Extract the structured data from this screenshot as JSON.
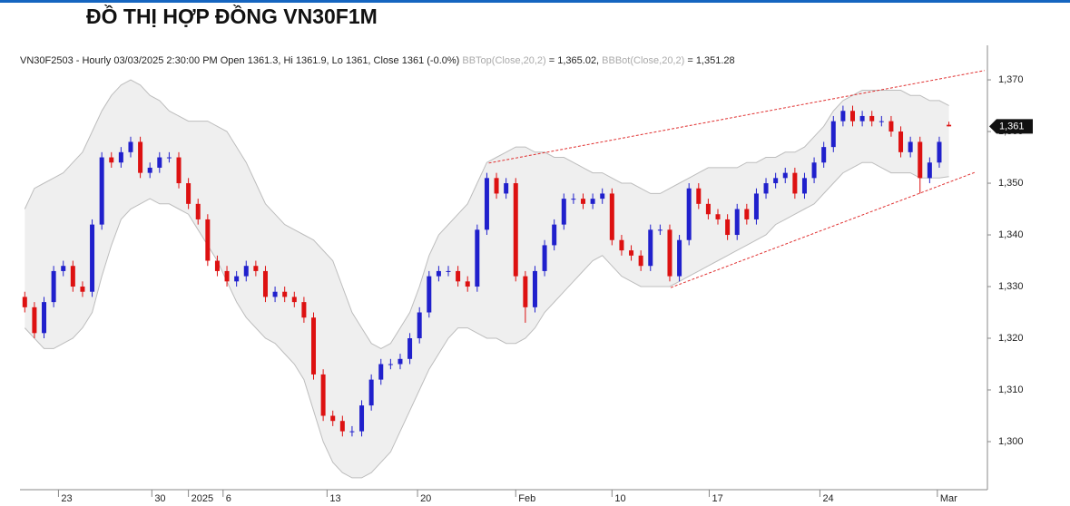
{
  "chart_data": {
    "type": "candlestick",
    "title": "ĐỒ THỊ HỢP ĐỒNG VN30F1M",
    "header": [
      {
        "text": "VN30F2503 - Hourly 03/03/2025 2:30:00 PM Open 1361.3, Hi 1361.9, Lo 1361, Close 1361 (-0.0%) ",
        "color": "#222222"
      },
      {
        "text": "BBTop(Close,20,2)",
        "color": "#aaaaaa"
      },
      {
        "text": " = 1,365.02, ",
        "color": "#222222"
      },
      {
        "text": "BBBot(Close,20,2)",
        "color": "#aaaaaa"
      },
      {
        "text": " = 1,351.28",
        "color": "#222222"
      }
    ],
    "up_color": "#2020cc",
    "down_color": "#dd1111",
    "open": [
      1328,
      1326,
      1321,
      1327,
      1333,
      1334,
      1330,
      1329,
      1342,
      1355,
      1354,
      1356,
      1358,
      1352,
      1353,
      1355,
      1355,
      1350,
      1346,
      1343,
      1335,
      1333,
      1331,
      1332,
      1334,
      1333,
      1328,
      1329,
      1328,
      1327,
      1324,
      1313,
      1305,
      1304,
      1302,
      1302,
      1307,
      1312,
      1315,
      1315,
      1316,
      1320,
      1325,
      1332,
      1333,
      1333,
      1331,
      1330,
      1341,
      1351,
      1348,
      1350,
      1332,
      1326,
      1333,
      1338,
      1342,
      1347,
      1347,
      1346,
      1347,
      1348,
      1339,
      1337,
      1336,
      1334,
      1341,
      1341,
      1332,
      1339,
      1349,
      1346,
      1344,
      1343,
      1340,
      1345,
      1343,
      1348,
      1350,
      1351,
      1352,
      1348,
      1351,
      1354,
      1357,
      1362,
      1364,
      1362,
      1363,
      1362,
      1362,
      1360,
      1356,
      1358,
      1351,
      1354,
      1361.3
    ],
    "high": [
      1329,
      1327,
      1328,
      1334,
      1335,
      1335,
      1331,
      1343,
      1356,
      1356,
      1357,
      1359,
      1359,
      1354,
      1356,
      1356,
      1356,
      1351,
      1347,
      1344,
      1336,
      1334,
      1333,
      1335,
      1335,
      1334,
      1330,
      1330,
      1329,
      1328,
      1325,
      1314,
      1306,
      1305,
      1303,
      1308,
      1313,
      1316,
      1316,
      1317,
      1321,
      1326,
      1333,
      1334,
      1334,
      1334,
      1332,
      1342,
      1352,
      1352,
      1351,
      1351,
      1333,
      1334,
      1339,
      1343,
      1348,
      1348,
      1348,
      1348,
      1349,
      1349,
      1340,
      1338,
      1337,
      1342,
      1342,
      1342,
      1340,
      1350,
      1350,
      1347,
      1345,
      1344,
      1346,
      1346,
      1349,
      1351,
      1352,
      1353,
      1353,
      1352,
      1355,
      1358,
      1363,
      1365,
      1365,
      1364,
      1364,
      1363,
      1363,
      1361,
      1359,
      1359,
      1355,
      1359,
      1361.9
    ],
    "low": [
      1325,
      1320,
      1320,
      1326,
      1332,
      1329,
      1328,
      1328,
      1341,
      1353,
      1353,
      1355,
      1351,
      1351,
      1352,
      1354,
      1349,
      1345,
      1342,
      1334,
      1332,
      1330,
      1330,
      1331,
      1332,
      1327,
      1327,
      1327,
      1326,
      1323,
      1312,
      1304,
      1303,
      1301,
      1301,
      1301,
      1306,
      1311,
      1314,
      1314,
      1315,
      1319,
      1324,
      1331,
      1332,
      1330,
      1329,
      1329,
      1340,
      1347,
      1347,
      1331,
      1323,
      1325,
      1332,
      1337,
      1341,
      1346,
      1345,
      1345,
      1346,
      1338,
      1336,
      1335,
      1333,
      1333,
      1340,
      1331,
      1331,
      1338,
      1345,
      1343,
      1342,
      1339,
      1339,
      1342,
      1342,
      1347,
      1349,
      1350,
      1347,
      1347,
      1350,
      1353,
      1356,
      1361,
      1361,
      1361,
      1361,
      1361,
      1359,
      1355,
      1355,
      1348,
      1350,
      1353,
      1361
    ],
    "close": [
      1326,
      1321,
      1327,
      1333,
      1334,
      1330,
      1329,
      1342,
      1355,
      1354,
      1356,
      1358,
      1352,
      1353,
      1355,
      1355,
      1350,
      1346,
      1343,
      1335,
      1333,
      1331,
      1332,
      1334,
      1333,
      1328,
      1329,
      1328,
      1327,
      1324,
      1313,
      1305,
      1304,
      1302,
      1302,
      1307,
      1312,
      1315,
      1315,
      1316,
      1320,
      1325,
      1332,
      1333,
      1333,
      1331,
      1330,
      1341,
      1351,
      1348,
      1350,
      1332,
      1326,
      1333,
      1338,
      1342,
      1347,
      1347,
      1346,
      1347,
      1348,
      1339,
      1337,
      1336,
      1334,
      1341,
      1341,
      1332,
      1339,
      1349,
      1346,
      1344,
      1343,
      1340,
      1345,
      1343,
      1348,
      1350,
      1351,
      1352,
      1348,
      1351,
      1354,
      1357,
      1362,
      1364,
      1362,
      1363,
      1362,
      1362,
      1360,
      1356,
      1358,
      1351,
      1354,
      1358,
      1361
    ],
    "bands": {
      "fill": "#efefef",
      "color": "#bdbdbd",
      "upper": [
        1345,
        1349,
        1350,
        1351,
        1352,
        1354,
        1356,
        1360,
        1364,
        1367,
        1369,
        1370,
        1369,
        1367,
        1366,
        1364,
        1363,
        1362,
        1362,
        1362,
        1361,
        1360,
        1357,
        1354,
        1350,
        1346,
        1344,
        1342,
        1341,
        1340,
        1339,
        1337,
        1335,
        1330,
        1325,
        1322,
        1319,
        1318,
        1319,
        1322,
        1325,
        1330,
        1336,
        1340,
        1342,
        1344,
        1346,
        1350,
        1354,
        1355,
        1356,
        1357,
        1357,
        1356,
        1356,
        1355,
        1355,
        1354,
        1353,
        1352,
        1352,
        1351,
        1350,
        1350,
        1349,
        1348,
        1348,
        1349,
        1350,
        1351,
        1352,
        1353,
        1353,
        1353,
        1353,
        1354,
        1354,
        1355,
        1355,
        1356,
        1356,
        1357,
        1359,
        1361,
        1364,
        1366,
        1367,
        1368,
        1368,
        1368,
        1368,
        1368,
        1367,
        1367,
        1366,
        1366,
        1365.02
      ],
      "lower": [
        1322,
        1320,
        1318,
        1318,
        1319,
        1320,
        1322,
        1325,
        1332,
        1338,
        1343,
        1345,
        1346,
        1347,
        1346,
        1346,
        1345,
        1344,
        1341,
        1338,
        1335,
        1331,
        1327,
        1324,
        1322,
        1320,
        1319,
        1317,
        1315,
        1312,
        1306,
        1300,
        1296,
        1294,
        1293,
        1293,
        1294,
        1296,
        1298,
        1302,
        1306,
        1310,
        1314,
        1317,
        1320,
        1322,
        1322,
        1321,
        1320,
        1320,
        1319,
        1319,
        1320,
        1322,
        1325,
        1327,
        1329,
        1331,
        1333,
        1335,
        1336,
        1334,
        1332,
        1331,
        1330,
        1330,
        1330,
        1330,
        1331,
        1332,
        1333,
        1334,
        1335,
        1336,
        1337,
        1338,
        1339,
        1340,
        1342,
        1343,
        1344,
        1345,
        1346,
        1348,
        1350,
        1352,
        1353,
        1354,
        1354,
        1353,
        1352,
        1352,
        1352,
        1351,
        1351,
        1351,
        1351.28
      ]
    },
    "trendlines": [
      {
        "color": "#e03030",
        "points": [
          [
            48.2,
            1353.9
          ],
          [
            99.7,
            1371.8
          ]
        ]
      },
      {
        "color": "#e03030",
        "points": [
          [
            67.1,
            1329.8
          ],
          [
            98.7,
            1352.1
          ]
        ]
      }
    ],
    "last_price": {
      "value": 1361,
      "label": "1,361"
    },
    "xlim": [
      -0.5,
      100
    ],
    "xticks": [
      {
        "value": 3.5,
        "label": "23"
      },
      {
        "value": 13.2,
        "label": "30"
      },
      {
        "value": 17,
        "label": "2025"
      },
      {
        "value": 20.6,
        "label": "6"
      },
      {
        "value": 31.4,
        "label": "13"
      },
      {
        "value": 40.8,
        "label": "20"
      },
      {
        "value": 51,
        "label": "Feb"
      },
      {
        "value": 61,
        "label": "10"
      },
      {
        "value": 71.1,
        "label": "17"
      },
      {
        "value": 82.6,
        "label": "24"
      },
      {
        "value": 94.8,
        "label": "Mar"
      }
    ],
    "ylim": [
      1290.7,
      1375.8
    ],
    "yticks": [
      {
        "value": 1300,
        "label": "1,300"
      },
      {
        "value": 1310,
        "label": "1,310"
      },
      {
        "value": 1320,
        "label": "1,320"
      },
      {
        "value": 1330,
        "label": "1,330"
      },
      {
        "value": 1340,
        "label": "1,340"
      },
      {
        "value": 1350,
        "label": "1,350"
      },
      {
        "value": 1360,
        "label": "1,360"
      },
      {
        "value": 1370,
        "label": "1,370"
      }
    ],
    "grid": false
  }
}
